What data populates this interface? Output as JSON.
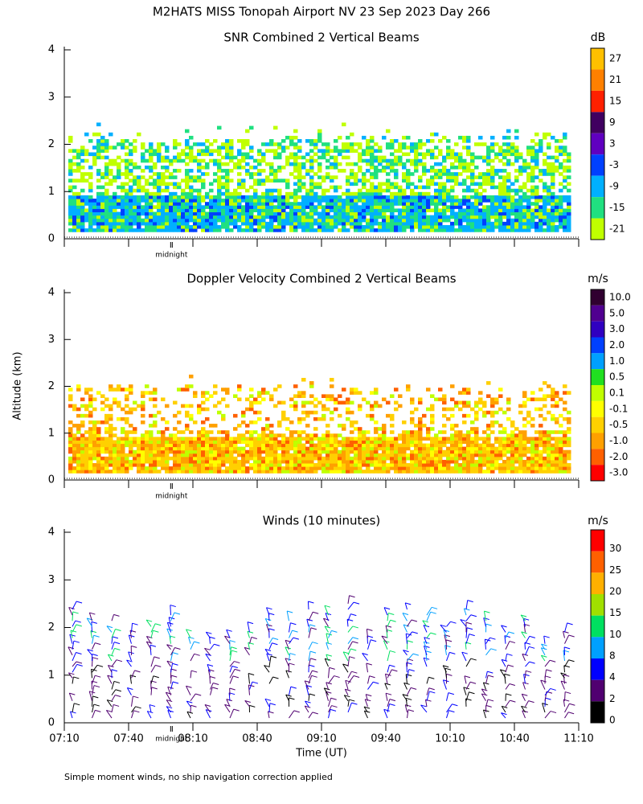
{
  "title": "M2HATS MISS Tonopah Airport NV  23 Sep 2023 Day 266",
  "y_axis_label": "Altitude (km)",
  "x_axis_label": "Time (UT)",
  "footnote": "Simple moment winds, no ship navigation correction applied",
  "midnight": {
    "value": 50,
    "label": "midnight"
  },
  "xlim": [
    0,
    240
  ],
  "xticks": [
    {
      "value": 0,
      "label": "07:10"
    },
    {
      "value": 30,
      "label": "07:40"
    },
    {
      "value": 60,
      "label": "08:10"
    },
    {
      "value": 90,
      "label": "08:40"
    },
    {
      "value": 120,
      "label": "09:10"
    },
    {
      "value": 150,
      "label": "09:40"
    },
    {
      "value": 180,
      "label": "10:10"
    },
    {
      "value": 210,
      "label": "10:40"
    },
    {
      "value": 240,
      "label": "11:10"
    }
  ],
  "panels": [
    {
      "type": "heatmap",
      "title": "SNR Combined 2 Vertical Beams",
      "ylim": [
        0,
        4
      ],
      "yticks": [
        0,
        1,
        2,
        3,
        4
      ],
      "colorbar": {
        "unit": "dB",
        "ticks": [
          27,
          21,
          15,
          9,
          3,
          -3,
          -9,
          -15,
          -21
        ],
        "colors": [
          "#ffc000",
          "#ff8000",
          "#ff2000",
          "#400060",
          "#6000c0",
          "#0040ff",
          "#00b0ff",
          "#20e080",
          "#c0ff00"
        ]
      }
    },
    {
      "type": "heatmap",
      "title": "Doppler Velocity Combined 2 Vertical Beams",
      "ylim": [
        0,
        4
      ],
      "yticks": [
        0,
        1,
        2,
        3,
        4
      ],
      "colorbar": {
        "unit": "m/s",
        "ticks": [
          {
            "value": 10,
            "label": "10.0"
          },
          {
            "value": 5,
            "label": "5.0"
          },
          {
            "value": 3,
            "label": "3.0"
          },
          {
            "value": 2,
            "label": "2.0"
          },
          {
            "value": 1,
            "label": "1.0"
          },
          0.5,
          0.1,
          -0.1,
          -0.5,
          {
            "value": -1,
            "label": "-1.0"
          },
          {
            "value": -2,
            "label": "-2.0"
          },
          {
            "value": -3,
            "label": "-3.0"
          }
        ],
        "colors": [
          "#300030",
          "#500090",
          "#3000c0",
          "#0040ff",
          "#00a0ff",
          "#20e020",
          "#c0ff00",
          "#ffff00",
          "#ffd000",
          "#ffa000",
          "#ff6000",
          "#ff0000"
        ]
      }
    },
    {
      "type": "barbs",
      "title": "Winds (10 minutes)",
      "ylim": [
        0,
        4
      ],
      "yticks": [
        0,
        1,
        2,
        3,
        4
      ],
      "colorbar": {
        "unit": "m/s",
        "ticks": [
          30,
          25,
          20,
          15,
          10,
          8,
          4,
          2,
          0
        ],
        "colors": [
          "#ff0000",
          "#ff6000",
          "#ffb000",
          "#a0e000",
          "#00e060",
          "#00a0ff",
          "#0000ff",
          "#500070",
          "#000000"
        ]
      }
    }
  ]
}
